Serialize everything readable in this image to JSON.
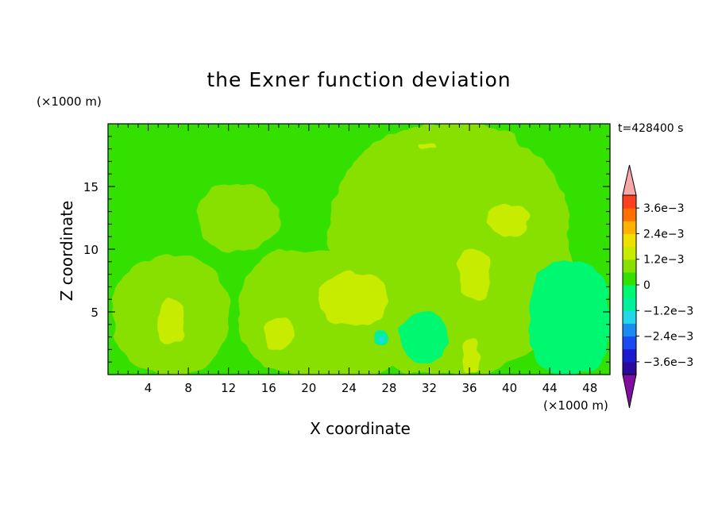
{
  "chart_data": {
    "type": "heatmap",
    "title": "the Exner function deviation",
    "xlabel": "X coordinate",
    "ylabel": "Z coordinate",
    "x_unit_label": "(×1000 m)",
    "z_unit_label": "(×1000 m)",
    "time_label": "t=428400 s",
    "xlim": [
      0,
      50
    ],
    "ylim": [
      0,
      20
    ],
    "x_ticks": [
      4,
      8,
      12,
      16,
      20,
      24,
      28,
      32,
      36,
      40,
      44,
      48
    ],
    "y_ticks": [
      5,
      10,
      15
    ],
    "colorbar": {
      "levels": [
        -0.0042,
        -0.0036,
        -0.003,
        -0.0024,
        -0.0018,
        -0.0012,
        -0.0006,
        0,
        0.0006,
        0.0012,
        0.0018,
        0.0024,
        0.003,
        0.0036,
        0.0042
      ],
      "tick_labels": [
        "3.6e−3",
        "2.4e−3",
        "1.2e−3",
        "0",
        "−1.2e−3",
        "−2.4e−3",
        "−3.6e−3"
      ],
      "tick_values": [
        0.0036,
        0.0024,
        0.0012,
        0,
        -0.0012,
        -0.0024,
        -0.0036
      ],
      "colors_bottom_to_top": [
        "#6a0dad",
        "#2a0a9a",
        "#1a1ad0",
        "#1a4af0",
        "#1a8cf0",
        "#20d8e8",
        "#00f0a0",
        "#00f870",
        "#33e000",
        "#88e000",
        "#c8ec00",
        "#f0e000",
        "#ffb000",
        "#ff7000",
        "#ff4020",
        "#f01010"
      ],
      "lower_extend_color": "#800fa0",
      "upper_extend_color": "#f7a8a8",
      "extend": "both"
    },
    "background_level": 0.0003,
    "regions": [
      {
        "level": 0.0009,
        "desc": "left-lower lobe",
        "x": [
          0.5,
          12
        ],
        "z": [
          0,
          9.5
        ]
      },
      {
        "level": 0.0009,
        "desc": "upper-left lobe",
        "x": [
          9,
          17
        ],
        "z": [
          10,
          15
        ]
      },
      {
        "level": 0.0009,
        "desc": "central lobe",
        "x": [
          13,
          31
        ],
        "z": [
          0,
          10
        ]
      },
      {
        "level": 0.0009,
        "desc": "right column",
        "x": [
          22,
          46
        ],
        "z": [
          0,
          20
        ]
      },
      {
        "level": 0.0015,
        "x": [
          5,
          7.5
        ],
        "z": [
          2.5,
          6
        ]
      },
      {
        "level": 0.0015,
        "x": [
          15.5,
          18.5
        ],
        "z": [
          2,
          4.5
        ]
      },
      {
        "level": 0.0015,
        "x": [
          21,
          28
        ],
        "z": [
          4,
          8
        ]
      },
      {
        "level": 0.0015,
        "x": [
          35,
          38
        ],
        "z": [
          6,
          10
        ]
      },
      {
        "level": 0.0015,
        "x": [
          35.5,
          37
        ],
        "z": [
          0,
          3
        ]
      },
      {
        "level": 0.0015,
        "x": [
          38,
          42
        ],
        "z": [
          11,
          13.5
        ]
      },
      {
        "level": 0.0015,
        "x": [
          31,
          32.5
        ],
        "z": [
          18,
          18.5
        ]
      },
      {
        "level": -0.0003,
        "x": [
          29,
          34
        ],
        "z": [
          1,
          5
        ]
      },
      {
        "level": -0.0003,
        "x": [
          42,
          50
        ],
        "z": [
          0,
          9
        ]
      },
      {
        "level": -0.0009,
        "x": [
          26.5,
          28
        ],
        "z": [
          2.5,
          3.5
        ]
      },
      {
        "level": -0.0015,
        "x": [
          27,
          27.5
        ],
        "z": [
          2.7,
          3.1
        ]
      }
    ]
  }
}
